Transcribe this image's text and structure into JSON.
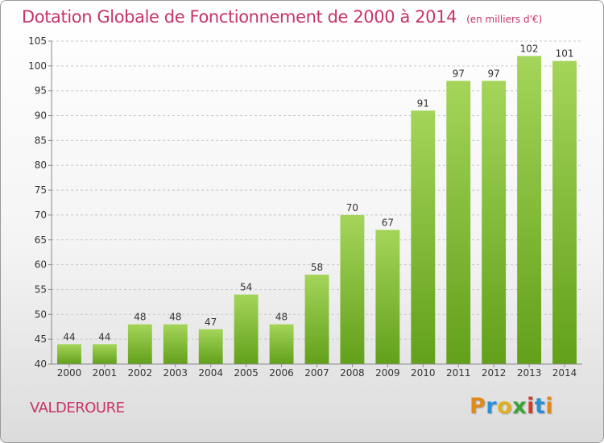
{
  "header": {
    "title": "Dotation Globale de Fonctionnement de 2000 à 2014",
    "subtitle": "(en milliers d'€)"
  },
  "footer": {
    "commune": "VALDEROURE",
    "logo_text": "Proxiti"
  },
  "colors": {
    "title": "#c8336a",
    "bar_top": "#a4d55a",
    "bar_bottom": "#62a01a",
    "logo_letters": [
      "#e08a1e",
      "#2a8fd4",
      "#e0b020",
      "#3aa43a",
      "#d43a2a",
      "#2a8fd4",
      "#e08a1e"
    ]
  },
  "chart_data": {
    "type": "bar",
    "title": "Dotation Globale de Fonctionnement de 2000 à 2014",
    "subtitle": "(en milliers d'€)",
    "categories": [
      "2000",
      "2001",
      "2002",
      "2003",
      "2004",
      "2005",
      "2006",
      "2007",
      "2008",
      "2009",
      "2010",
      "2011",
      "2012",
      "2013",
      "2014"
    ],
    "values": [
      44,
      44,
      48,
      48,
      47,
      54,
      48,
      58,
      70,
      67,
      91,
      97,
      97,
      102,
      101
    ],
    "xlabel": "",
    "ylabel": "",
    "ylim": [
      40,
      105
    ],
    "yticks": [
      40,
      45,
      50,
      55,
      60,
      65,
      70,
      75,
      80,
      85,
      90,
      95,
      100,
      105
    ],
    "grid": true,
    "legend": "none"
  }
}
